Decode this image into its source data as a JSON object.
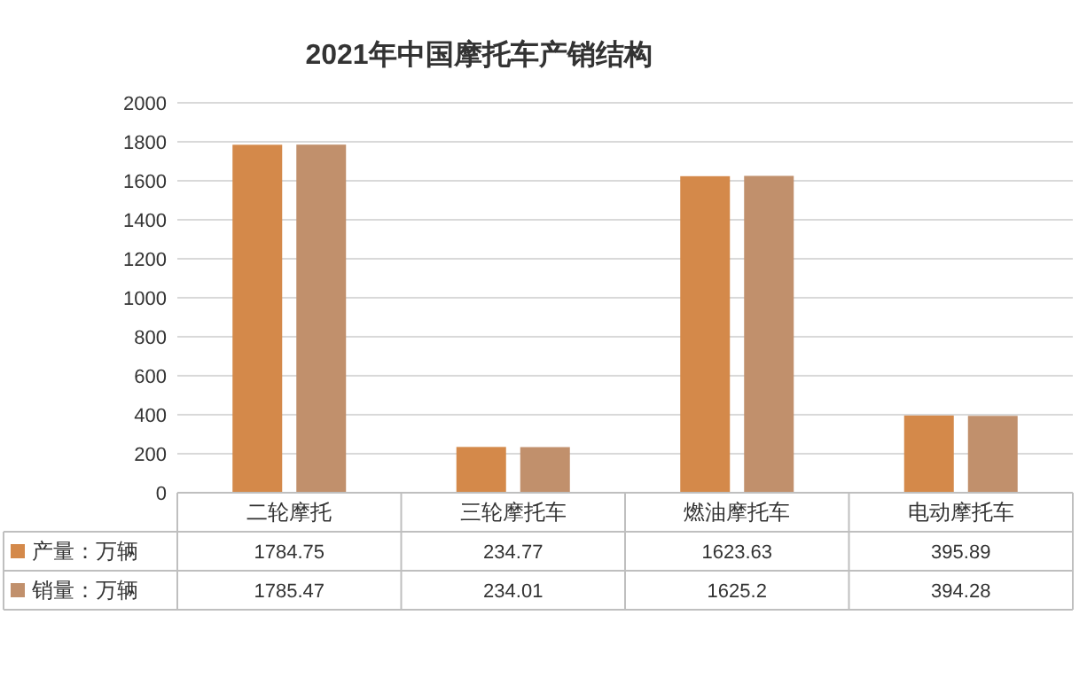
{
  "chart_data": {
    "type": "bar",
    "title": "2021年中国摩托车产销结构",
    "categories": [
      "二轮摩托",
      "三轮摩托车",
      "燃油摩托车",
      "电动摩托车"
    ],
    "series": [
      {
        "name": "产量：万辆",
        "color": "#d4894a",
        "values": [
          1784.75,
          234.77,
          1623.63,
          395.89
        ]
      },
      {
        "name": "销量：万辆",
        "color": "#c1906c",
        "values": [
          1785.47,
          234.01,
          1625.2,
          394.28
        ]
      }
    ],
    "ylim": [
      0,
      2000
    ],
    "yticks": [
      0,
      200,
      400,
      600,
      800,
      1000,
      1200,
      1400,
      1600,
      1800,
      2000
    ],
    "grid": "y",
    "legend": "bottom",
    "data_labels": true
  }
}
